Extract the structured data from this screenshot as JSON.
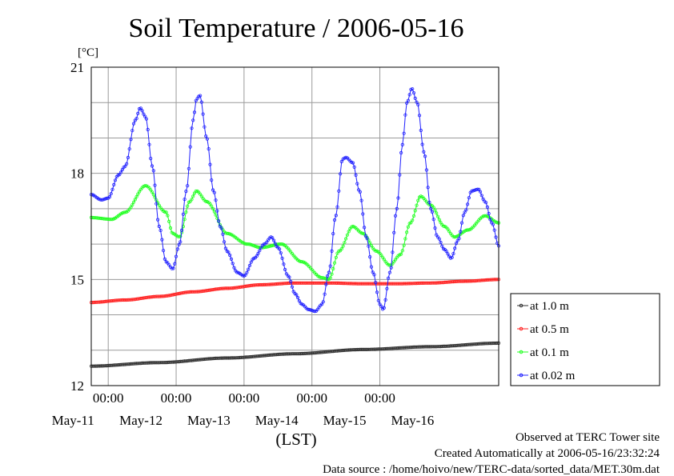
{
  "chart_data": {
    "type": "line",
    "title": "Soil Temperature / 2006-05-16",
    "ylabel": "[°C]",
    "xlabel": "(LST)",
    "ylim": [
      12,
      21
    ],
    "yticks": [
      12,
      15,
      18,
      21
    ],
    "xlim": [
      0,
      6.0
    ],
    "x_unit": "days from 2006-05-10 18:00 LST",
    "time_ticks": [
      "00:00",
      "00:00",
      "00:00",
      "00:00",
      "00:00"
    ],
    "day_labels": [
      "May-11",
      "May-12",
      "May-13",
      "May-14",
      "May-15",
      "May-16"
    ],
    "grid": true,
    "legend_position": "right",
    "series": [
      {
        "name": "at 1.0 m",
        "color": "#303030",
        "points": [
          [
            0.0,
            12.55
          ],
          [
            1.0,
            12.65
          ],
          [
            2.0,
            12.78
          ],
          [
            3.0,
            12.9
          ],
          [
            4.0,
            13.02
          ],
          [
            5.0,
            13.1
          ],
          [
            6.0,
            13.2
          ]
        ]
      },
      {
        "name": "at 0.5 m",
        "color": "#ff2020",
        "points": [
          [
            0.0,
            14.35
          ],
          [
            0.5,
            14.42
          ],
          [
            1.0,
            14.52
          ],
          [
            1.5,
            14.65
          ],
          [
            2.0,
            14.75
          ],
          [
            2.5,
            14.85
          ],
          [
            3.0,
            14.9
          ],
          [
            3.5,
            14.9
          ],
          [
            4.0,
            14.88
          ],
          [
            4.5,
            14.88
          ],
          [
            5.0,
            14.9
          ],
          [
            5.5,
            14.95
          ],
          [
            6.0,
            15.0
          ]
        ]
      },
      {
        "name": "at 0.1 m",
        "color": "#20ff20",
        "points": [
          [
            0.0,
            16.75
          ],
          [
            0.3,
            16.7
          ],
          [
            0.5,
            16.9
          ],
          [
            0.8,
            17.65
          ],
          [
            1.1,
            16.9
          ],
          [
            1.2,
            16.3
          ],
          [
            1.3,
            16.2
          ],
          [
            1.45,
            17.2
          ],
          [
            1.55,
            17.5
          ],
          [
            1.7,
            17.2
          ],
          [
            2.0,
            16.3
          ],
          [
            2.3,
            16.0
          ],
          [
            2.5,
            15.9
          ],
          [
            2.8,
            16.0
          ],
          [
            3.1,
            15.5
          ],
          [
            3.4,
            15.05
          ],
          [
            3.5,
            15.0
          ],
          [
            3.65,
            15.8
          ],
          [
            3.85,
            16.5
          ],
          [
            4.0,
            16.3
          ],
          [
            4.2,
            15.8
          ],
          [
            4.4,
            15.4
          ],
          [
            4.55,
            15.7
          ],
          [
            4.7,
            16.6
          ],
          [
            4.85,
            17.35
          ],
          [
            5.0,
            17.1
          ],
          [
            5.2,
            16.5
          ],
          [
            5.35,
            16.2
          ],
          [
            5.55,
            16.4
          ],
          [
            5.8,
            16.8
          ],
          [
            6.0,
            16.6
          ]
        ]
      },
      {
        "name": "at 0.02 m",
        "color": "#2020ff",
        "points": [
          [
            0.0,
            17.4
          ],
          [
            0.15,
            17.25
          ],
          [
            0.25,
            17.3
          ],
          [
            0.4,
            17.95
          ],
          [
            0.5,
            18.2
          ],
          [
            0.65,
            19.5
          ],
          [
            0.72,
            19.85
          ],
          [
            0.8,
            19.6
          ],
          [
            0.9,
            18.2
          ],
          [
            1.0,
            16.5
          ],
          [
            1.1,
            15.5
          ],
          [
            1.2,
            15.3
          ],
          [
            1.3,
            16.0
          ],
          [
            1.4,
            17.5
          ],
          [
            1.5,
            19.5
          ],
          [
            1.55,
            20.1
          ],
          [
            1.6,
            20.2
          ],
          [
            1.7,
            19.0
          ],
          [
            1.8,
            17.5
          ],
          [
            1.9,
            16.5
          ],
          [
            2.0,
            15.8
          ],
          [
            2.15,
            15.2
          ],
          [
            2.25,
            15.1
          ],
          [
            2.4,
            15.6
          ],
          [
            2.55,
            16.0
          ],
          [
            2.65,
            16.2
          ],
          [
            2.75,
            15.9
          ],
          [
            2.9,
            15.1
          ],
          [
            3.0,
            14.6
          ],
          [
            3.1,
            14.3
          ],
          [
            3.2,
            14.15
          ],
          [
            3.3,
            14.1
          ],
          [
            3.4,
            14.3
          ],
          [
            3.5,
            15.2
          ],
          [
            3.6,
            16.8
          ],
          [
            3.7,
            18.4
          ],
          [
            3.75,
            18.45
          ],
          [
            3.85,
            18.3
          ],
          [
            3.95,
            17.5
          ],
          [
            4.05,
            16.2
          ],
          [
            4.15,
            15.2
          ],
          [
            4.25,
            14.3
          ],
          [
            4.3,
            14.15
          ],
          [
            4.4,
            15.2
          ],
          [
            4.5,
            17.0
          ],
          [
            4.58,
            18.8
          ],
          [
            4.65,
            20.0
          ],
          [
            4.72,
            20.4
          ],
          [
            4.8,
            20.0
          ],
          [
            4.9,
            18.6
          ],
          [
            5.0,
            17.0
          ],
          [
            5.1,
            16.2
          ],
          [
            5.2,
            15.85
          ],
          [
            5.3,
            15.6
          ],
          [
            5.4,
            16.1
          ],
          [
            5.5,
            16.9
          ],
          [
            5.6,
            17.5
          ],
          [
            5.7,
            17.55
          ],
          [
            5.8,
            17.2
          ],
          [
            5.9,
            16.6
          ],
          [
            6.0,
            15.95
          ]
        ]
      }
    ]
  },
  "footer": {
    "site": "Observed at TERC Tower site",
    "created": "Created Automatically at 2006-05-16/23:32:24",
    "source": "Data source : /home/hoivo/new/TERC-data/sorted_data/MET.30m.dat"
  }
}
